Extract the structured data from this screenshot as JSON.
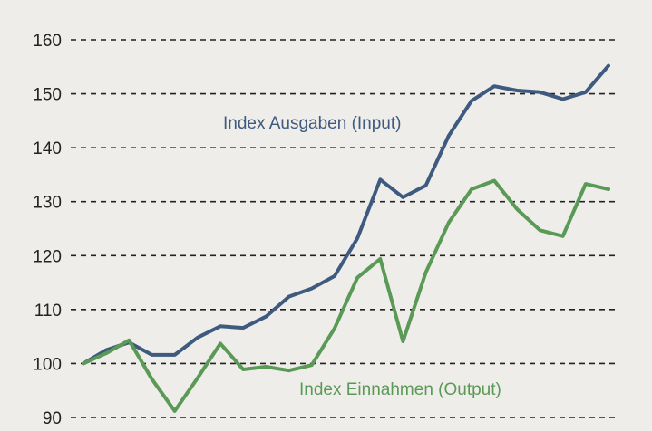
{
  "chart_data": {
    "type": "line",
    "title": "",
    "xlabel": "",
    "ylabel": "",
    "ylim": [
      90,
      160
    ],
    "yticks": [
      90,
      100,
      110,
      120,
      130,
      140,
      150,
      160
    ],
    "grid": true,
    "x": [
      0,
      1,
      2,
      3,
      4,
      5,
      6,
      7,
      8,
      9,
      10,
      11,
      12,
      13,
      14,
      15,
      16,
      17,
      18,
      19,
      20,
      21,
      22,
      23
    ],
    "series": [
      {
        "name": "Index Ausgaben (Input)",
        "color": "#3e5a7e",
        "values": [
          100,
          102.5,
          103.9,
          101.6,
          101.6,
          104.8,
          106.9,
          106.6,
          108.7,
          112.4,
          113.9,
          116.2,
          123.2,
          134.1,
          130.8,
          133.0,
          142.2,
          148.7,
          151.4,
          150.6,
          150.3,
          149.0,
          150.3,
          155.2
        ]
      },
      {
        "name": "Index Einnahmen (Output)",
        "color": "#5a9a56",
        "values": [
          100,
          101.9,
          104.3,
          97.1,
          91.2,
          97.3,
          103.7,
          98.9,
          99.4,
          98.7,
          99.7,
          106.5,
          115.9,
          119.4,
          104.1,
          116.9,
          126.1,
          132.3,
          133.9,
          128.6,
          124.7,
          123.6,
          133.3,
          132.3
        ]
      }
    ]
  }
}
